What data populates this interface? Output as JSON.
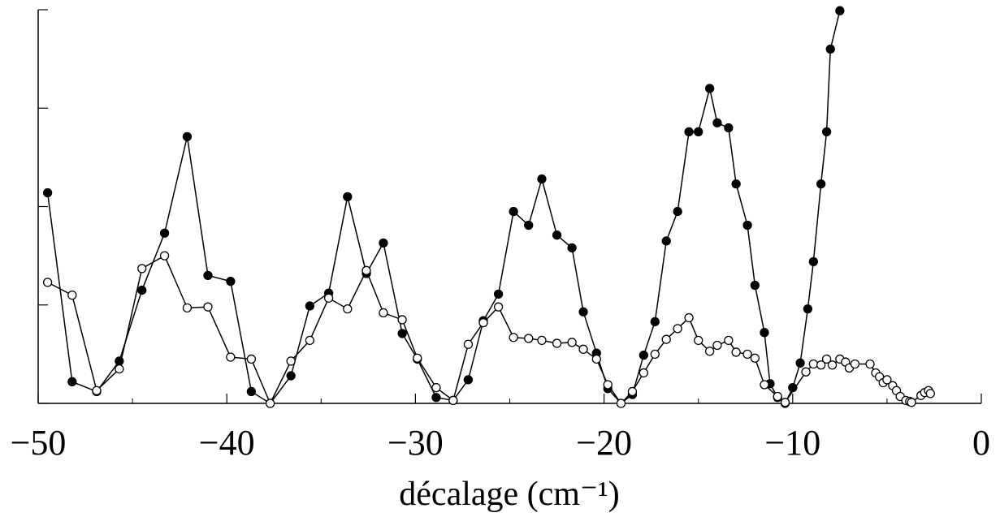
{
  "chart_data": {
    "type": "line",
    "x_label": "décalage (cm⁻¹)",
    "xlim": [
      -50,
      0
    ],
    "xticks": [
      {
        "value": -50,
        "label": "−50"
      },
      {
        "value": -40,
        "label": "−40"
      },
      {
        "value": -30,
        "label": "−30"
      },
      {
        "value": -20,
        "label": "−20"
      },
      {
        "value": -10,
        "label": "−10"
      },
      0
    ],
    "xminorticks": [
      -45,
      -35,
      -25,
      -15,
      -5
    ],
    "ylim": [
      0,
      4
    ],
    "yticks": [
      0,
      1,
      2,
      3,
      4
    ],
    "series": [
      {
        "color": "#000000",
        "marker_fill": "#000000",
        "x": [
          -49.5,
          -48.2,
          -46.9,
          -45.7,
          -44.5,
          -43.3,
          -42.1,
          -41.0,
          -39.8,
          -38.7,
          -37.7,
          -36.6,
          -35.6,
          -34.6,
          -33.6,
          -32.6,
          -31.7,
          -30.7,
          -29.9,
          -28.9,
          -28.0,
          -27.2,
          -26.4,
          -25.6,
          -24.8,
          -24.0,
          -23.3,
          -22.5,
          -21.7,
          -21.1,
          -20.4,
          -19.8,
          -19.1,
          -18.5,
          -17.9,
          -17.3,
          -16.7,
          -16.1,
          -15.5,
          -15.0,
          -14.4,
          -14.0,
          -13.4,
          -13.0,
          -12.4,
          -12.0,
          -11.5,
          -11.2,
          -10.8,
          -10.4,
          -10.0,
          -9.6,
          -9.2,
          -8.9,
          -8.5,
          -8.2,
          -8.0,
          -7.5
        ],
        "values": [
          2.14,
          0.22,
          0.12,
          0.43,
          1.15,
          1.73,
          2.71,
          1.3,
          1.24,
          0.12,
          0,
          0.28,
          0.99,
          1.12,
          2.1,
          1.32,
          1.63,
          0.71,
          0.45,
          0.06,
          0.03,
          0.24,
          0.84,
          1.11,
          1.95,
          1.81,
          2.28,
          1.71,
          1.58,
          0.93,
          0.51,
          0.15,
          0,
          0.09,
          0.49,
          0.83,
          1.65,
          1.95,
          2.76,
          2.76,
          3.2,
          2.85,
          2.8,
          2.23,
          1.81,
          1.2,
          0.72,
          0.2,
          0.06,
          0,
          0.16,
          0.41,
          0.96,
          1.44,
          2.23,
          2.76,
          3.6,
          3.99
        ]
      },
      {
        "color": "#000000",
        "marker_fill": "#ffffff",
        "x": [
          -49.5,
          -48.2,
          -46.9,
          -45.7,
          -44.5,
          -43.3,
          -42.1,
          -41.0,
          -39.8,
          -38.7,
          -37.7,
          -36.6,
          -35.6,
          -34.6,
          -33.6,
          -32.6,
          -31.7,
          -30.7,
          -29.9,
          -28.9,
          -28.0,
          -27.2,
          -26.4,
          -25.6,
          -24.8,
          -24.0,
          -23.3,
          -22.5,
          -21.7,
          -21.1,
          -20.4,
          -19.8,
          -19.1,
          -18.5,
          -17.9,
          -17.3,
          -16.7,
          -16.1,
          -15.5,
          -15.0,
          -14.4,
          -14.0,
          -13.4,
          -13.0,
          -12.4,
          -12.0,
          -11.5,
          -10.8,
          -10.4,
          -9.3,
          -8.9,
          -8.5,
          -8.2,
          -7.9,
          -7.5,
          -7.2,
          -7.0,
          -6.7,
          -5.9,
          -5.6,
          -5.4,
          -5.2,
          -5.0,
          -4.7,
          -4.5,
          -4.3,
          -4.0,
          -3.8,
          -3.7,
          -3.2,
          -3.0,
          -2.8,
          -2.7
        ],
        "values": [
          1.23,
          1.1,
          0.13,
          0.35,
          1.37,
          1.5,
          0.97,
          0.98,
          0.47,
          0.45,
          0,
          0.43,
          0.64,
          1.07,
          0.96,
          1.35,
          0.92,
          0.85,
          0.46,
          0.16,
          0.03,
          0.6,
          0.82,
          0.98,
          0.67,
          0.66,
          0.64,
          0.61,
          0.62,
          0.55,
          0.45,
          0.19,
          0,
          0.12,
          0.31,
          0.5,
          0.65,
          0.76,
          0.87,
          0.64,
          0.53,
          0.59,
          0.64,
          0.52,
          0.5,
          0.46,
          0.19,
          0.07,
          0.01,
          0.32,
          0.4,
          0.39,
          0.45,
          0.39,
          0.45,
          0.42,
          0.36,
          0.4,
          0.4,
          0.31,
          0.27,
          0.21,
          0.24,
          0.18,
          0.13,
          0.07,
          0.03,
          0.02,
          0.01,
          0.08,
          0.11,
          0.13,
          0.1
        ]
      }
    ]
  }
}
